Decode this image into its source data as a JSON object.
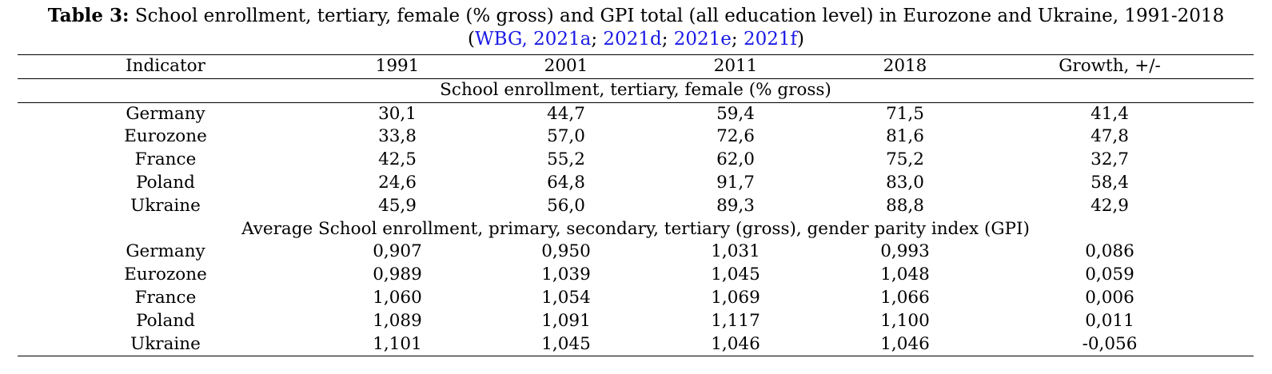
{
  "caption": {
    "label": "Table 3:",
    "text": "School enrollment, tertiary, female (% gross) and GPI total (all education level) in Eurozone and Ukraine, 1991-2018",
    "open_paren": "(",
    "refs": [
      "WBG, 2021a",
      "2021d",
      "2021e",
      "2021f"
    ],
    "ref_separator": "; ",
    "close_paren": ")"
  },
  "chart_data": {
    "type": "table",
    "columns": [
      "Indicator",
      "1991",
      "2001",
      "2011",
      "2018",
      "Growth, +/-"
    ],
    "sections": [
      {
        "title": "School enrollment, tertiary, female (% gross)",
        "rows": [
          [
            "Germany",
            "30,1",
            "44,7",
            "59,4",
            "71,5",
            "41,4"
          ],
          [
            "Eurozone",
            "33,8",
            "57,0",
            "72,6",
            "81,6",
            "47,8"
          ],
          [
            "France",
            "42,5",
            "55,2",
            "62,0",
            "75,2",
            "32,7"
          ],
          [
            "Poland",
            "24,6",
            "64,8",
            "91,7",
            "83,0",
            "58,4"
          ],
          [
            "Ukraine",
            "45,9",
            "56,0",
            "89,3",
            "88,8",
            "42,9"
          ]
        ]
      },
      {
        "title": "Average School enrollment, primary, secondary, tertiary (gross), gender parity index (GPI)",
        "rows": [
          [
            "Germany",
            "0,907",
            "0,950",
            "1,031",
            "0,993",
            "0,086"
          ],
          [
            "Eurozone",
            "0,989",
            "1,039",
            "1,045",
            "1,048",
            "0,059"
          ],
          [
            "France",
            "1,060",
            "1,054",
            "1,069",
            "1,066",
            "0,006"
          ],
          [
            "Poland",
            "1,089",
            "1,091",
            "1,117",
            "1,100",
            "0,011"
          ],
          [
            "Ukraine",
            "1,101",
            "1,045",
            "1,046",
            "1,046",
            "-0,056"
          ]
        ]
      }
    ]
  }
}
